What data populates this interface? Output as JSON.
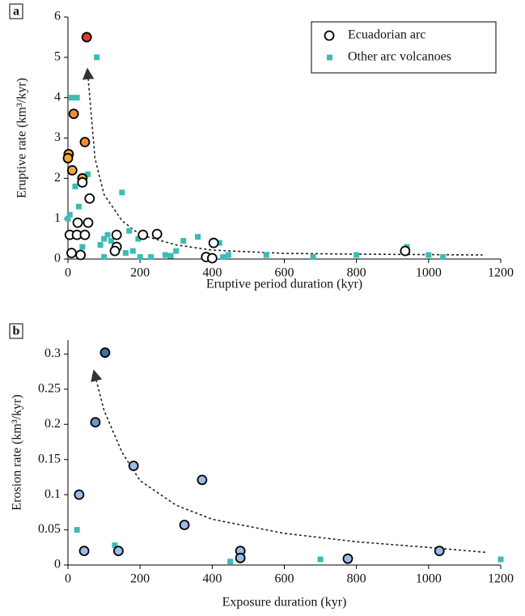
{
  "chart_data": [
    {
      "type": "scatter",
      "panel": "a",
      "x_label": "Eruptive period duration (kyr)",
      "y_label": "Eruptive rate (km³/kyr)",
      "xlim": [
        0,
        1200
      ],
      "xticks": [
        0,
        200,
        400,
        600,
        800,
        1000,
        1200
      ],
      "ylim": [
        0,
        6
      ],
      "yticks": [
        0,
        1,
        2,
        3,
        4,
        5,
        6
      ],
      "legend": "upper right",
      "series": [
        {
          "name": "Ecuadorian arc",
          "marker": "circle",
          "color": "#ffffff",
          "x": [
            52,
            16,
            47,
            2,
            0,
            12,
            40,
            40,
            60,
            27,
            56,
            5,
            25,
            47,
            135,
            208,
            247,
            135,
            130,
            10,
            35,
            404,
            383,
            400,
            935
          ],
          "values": [
            5.5,
            3.6,
            2.9,
            2.6,
            2.5,
            2.2,
            2.0,
            1.9,
            1.5,
            0.9,
            0.9,
            0.6,
            0.6,
            0.6,
            0.6,
            0.6,
            0.62,
            0.3,
            0.2,
            0.15,
            0.1,
            0.4,
            0.05,
            0.02,
            0.2
          ],
          "colors": [
            "#e8392b",
            "#ee8c35",
            "#ee8c35",
            "#f2a93b",
            "#f2a93b",
            "#f2a93b",
            "#f2a93b",
            "#ffffff",
            "#ffffff",
            "#ffffff",
            "#ffffff",
            "#ffffff",
            "#ffffff",
            "#ffffff",
            "#ffffff",
            "#ffffff",
            "#ffffff",
            "#ffffff",
            "#ffffff",
            "#ffffff",
            "#ffffff",
            "#ffffff",
            "#ffffff",
            "#ffffff",
            "#ffffff"
          ]
        },
        {
          "name": "Other arc volcanoes",
          "marker": "square",
          "color": "#3bbcb6",
          "x": [
            80,
            10,
            25,
            5,
            0,
            20,
            30,
            55,
            40,
            150,
            110,
            100,
            120,
            90,
            170,
            195,
            180,
            100,
            160,
            200,
            230,
            270,
            300,
            320,
            360,
            420,
            430,
            445,
            550,
            680,
            800,
            940,
            1000,
            1040,
            5,
            15,
            285
          ],
          "values": [
            5.0,
            4.0,
            4.0,
            1.1,
            1.0,
            1.8,
            1.3,
            2.1,
            0.3,
            1.65,
            0.6,
            0.5,
            0.45,
            0.35,
            0.7,
            0.5,
            0.2,
            0.05,
            0.15,
            0.05,
            0.05,
            0.1,
            0.2,
            0.45,
            0.55,
            0.4,
            0.05,
            0.1,
            0.1,
            0.05,
            0.1,
            0.3,
            0.1,
            0.05,
            0.1,
            0.6,
            0.08
          ]
        }
      ],
      "fit": {
        "x": [
          55,
          75,
          100,
          150,
          200,
          300,
          400,
          600,
          800,
          1150
        ],
        "values": [
          4.6,
          2.5,
          1.6,
          0.95,
          0.6,
          0.35,
          0.22,
          0.14,
          0.12,
          0.1
        ]
      }
    },
    {
      "type": "scatter",
      "panel": "b",
      "x_label": "Exposure duration (kyr)",
      "y_label": "Erosion rate (km³/kyr)",
      "xlim": [
        0,
        1200
      ],
      "xticks": [
        0,
        200,
        400,
        600,
        800,
        1000,
        1200
      ],
      "ylim": [
        0,
        0.32
      ],
      "yticks": [
        0,
        0.05,
        0.1,
        0.15,
        0.2,
        0.25,
        0.3
      ],
      "series": [
        {
          "name": "Ecuadorian arc",
          "marker": "circle",
          "color": "#9bbbe8",
          "x": [
            31,
            45,
            103,
            76,
            140,
            182,
            323,
            372,
            478,
            478,
            776,
            1030
          ],
          "values": [
            0.1,
            0.02,
            0.302,
            0.203,
            0.02,
            0.141,
            0.057,
            0.121,
            0.02,
            0.01,
            0.009,
            0.02
          ],
          "colors": [
            "#9bbbe8",
            "#9bbbe8",
            "#3f6fa8",
            "#6d96cf",
            "#9bbbe8",
            "#9bbbe8",
            "#9bbbe8",
            "#9bbbe8",
            "#9bbbe8",
            "#9bbbe8",
            "#9bbbe8",
            "#9bbbe8"
          ]
        },
        {
          "name": "Other arc volcanoes",
          "marker": "square",
          "color": "#3bbcb6",
          "x": [
            25,
            130,
            450,
            700,
            1200
          ],
          "values": [
            0.05,
            0.028,
            0.005,
            0.008,
            0.008
          ]
        }
      ],
      "fit": {
        "x": [
          75,
          100,
          150,
          200,
          300,
          400,
          600,
          800,
          1000,
          1160
        ],
        "values": [
          0.27,
          0.22,
          0.16,
          0.12,
          0.085,
          0.065,
          0.045,
          0.033,
          0.025,
          0.018
        ]
      }
    }
  ]
}
